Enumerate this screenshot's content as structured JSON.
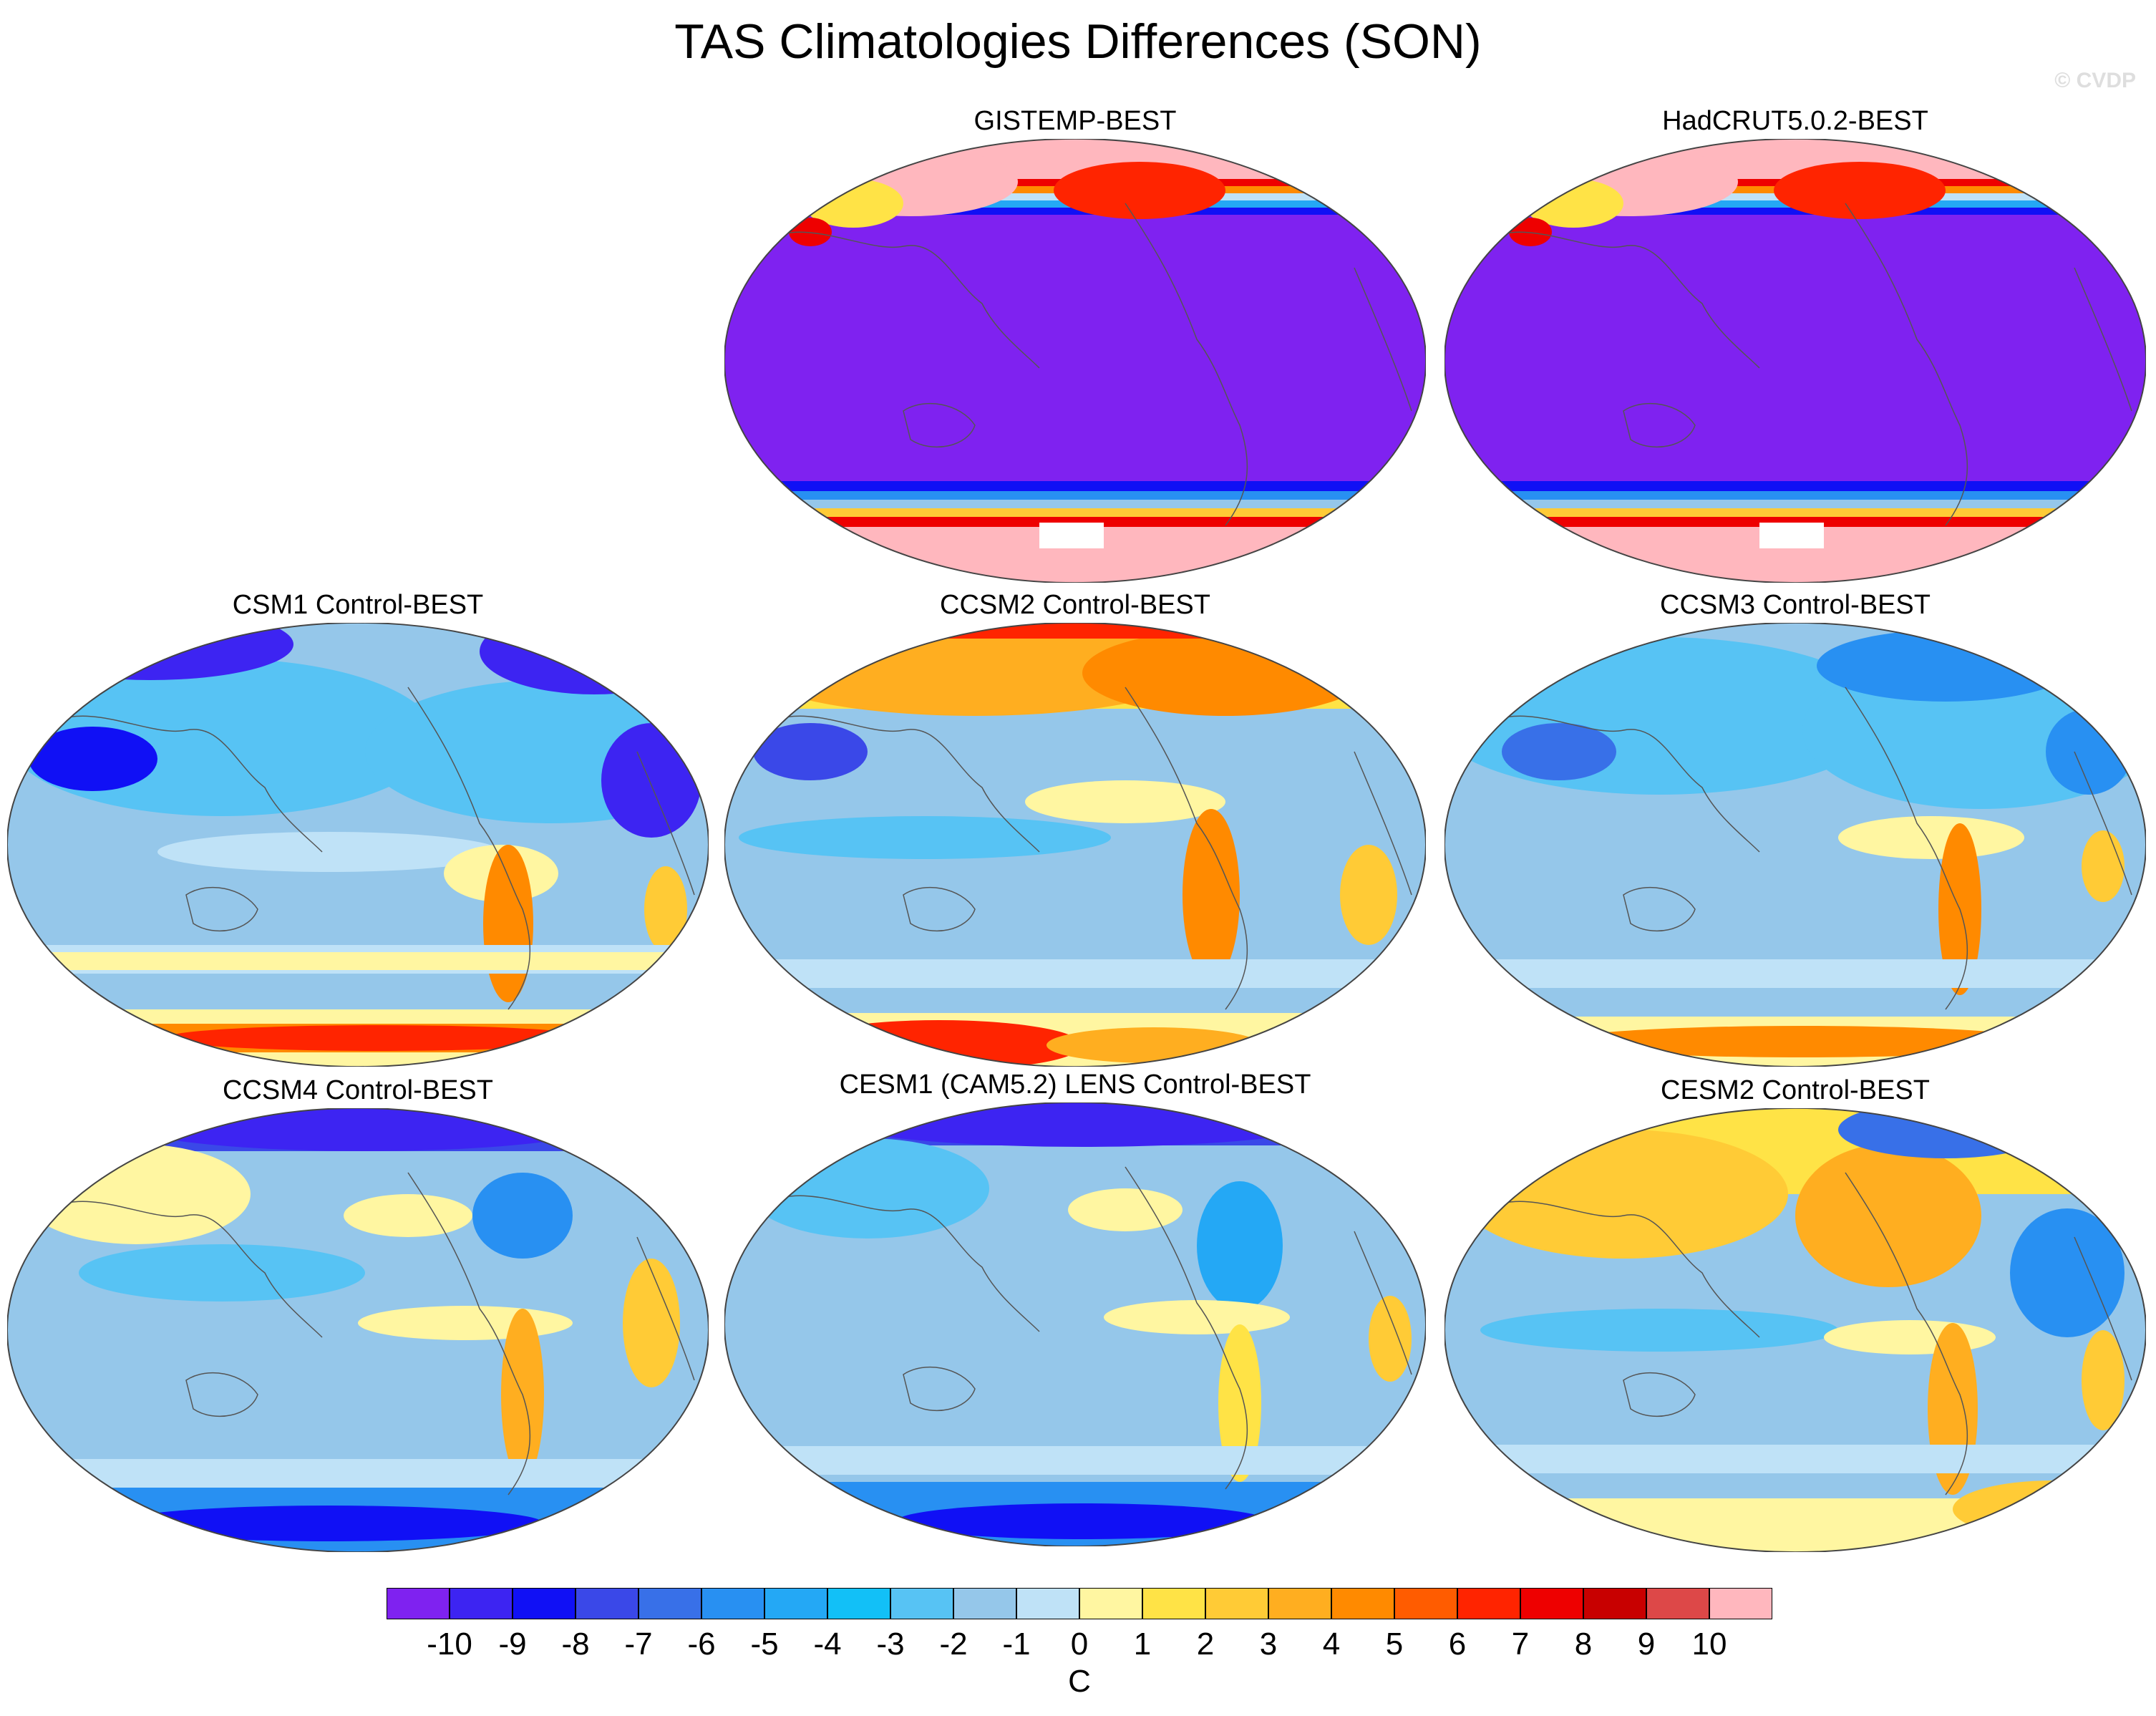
{
  "figure": {
    "title": "TAS Climatologies Differences (SON)",
    "watermark": "© CVDP"
  },
  "panels": [
    {
      "title": "GISTEMP-BEST",
      "pattern": "obs"
    },
    {
      "title": "HadCRUT5.0.2-BEST",
      "pattern": "obs"
    },
    {
      "title": "CSM1 Control-BEST",
      "pattern": "csm1"
    },
    {
      "title": "CCSM2 Control-BEST",
      "pattern": "ccsm2"
    },
    {
      "title": "CCSM3 Control-BEST",
      "pattern": "ccsm3"
    },
    {
      "title": "CCSM4 Control-BEST",
      "pattern": "ccsm4"
    },
    {
      "title": "CESM1 (CAM5.2) LENS Control-BEST",
      "pattern": "cesm1"
    },
    {
      "title": "CESM2 Control-BEST",
      "pattern": "cesm2"
    }
  ],
  "colorbar": {
    "unit": "C",
    "tick_labels": [
      "-10",
      "-9",
      "-8",
      "-7",
      "-6",
      "-5",
      "-4",
      "-3",
      "-2",
      "-1",
      "0",
      "1",
      "2",
      "3",
      "4",
      "5",
      "6",
      "7",
      "8",
      "9",
      "10"
    ],
    "colors": [
      "#7f22f0",
      "#3d24f2",
      "#1010f5",
      "#3a48e8",
      "#3870e8",
      "#2890f2",
      "#24a8f5",
      "#12c0f7",
      "#57c3f4",
      "#95c7ea",
      "#bfe2f7",
      "#fff6a1",
      "#ffe346",
      "#ffcb36",
      "#ffae20",
      "#ff8a00",
      "#ff5c00",
      "#ff2400",
      "#ee0000",
      "#c80000",
      "#dd4848",
      "#ffb7be"
    ]
  }
}
